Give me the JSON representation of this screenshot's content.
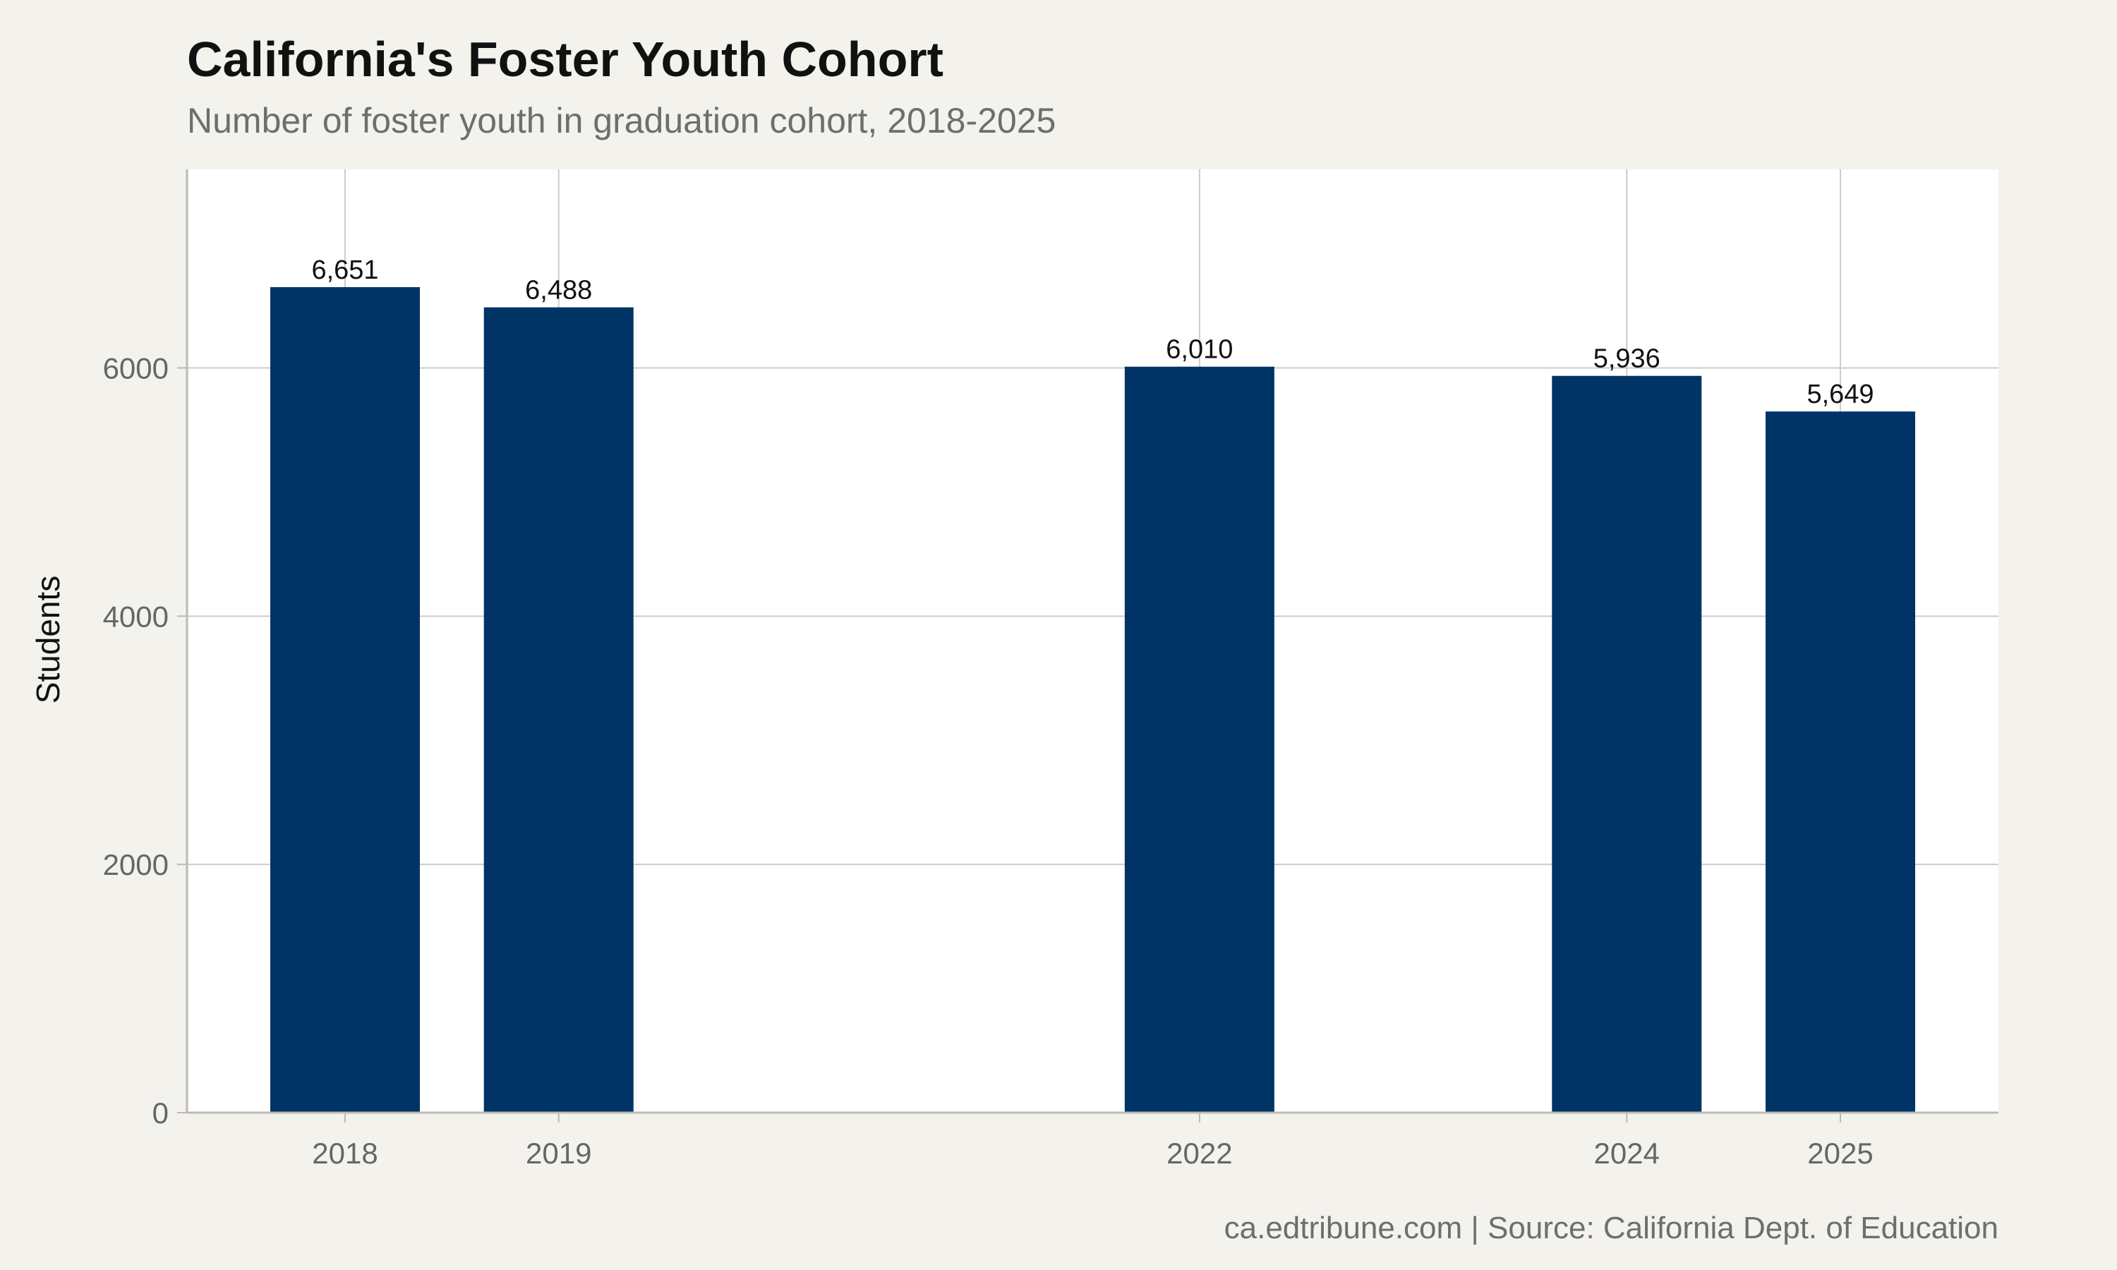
{
  "title": "California's Foster Youth Cohort",
  "subtitle": "Number of foster youth in graduation cohort, 2018-2025",
  "caption": "ca.edtribune.com | Source: California Dept. of Education",
  "colors": {
    "bar": "#003366",
    "panel": "#ffffff",
    "background": "#f4f2ed",
    "grid": "#cfccc4"
  },
  "chart_data": {
    "type": "bar",
    "x": [
      2018,
      2019,
      2022,
      2024,
      2025
    ],
    "categories": [
      "2018",
      "2019",
      "2022",
      "2024",
      "2025"
    ],
    "values": [
      6651,
      6488,
      6010,
      5936,
      5649
    ],
    "value_labels": [
      "6,651",
      "6,488",
      "6,010",
      "5,936",
      "5,649"
    ],
    "xlabel": "",
    "ylabel": "Students",
    "xlim": [
      2017.26,
      2025.74
    ],
    "ylim": [
      0,
      7600
    ],
    "yticks": [
      0,
      2000,
      4000,
      6000
    ],
    "ytick_labels": [
      "0",
      "2000",
      "4000",
      "6000"
    ],
    "grid": true,
    "legend": "none"
  }
}
